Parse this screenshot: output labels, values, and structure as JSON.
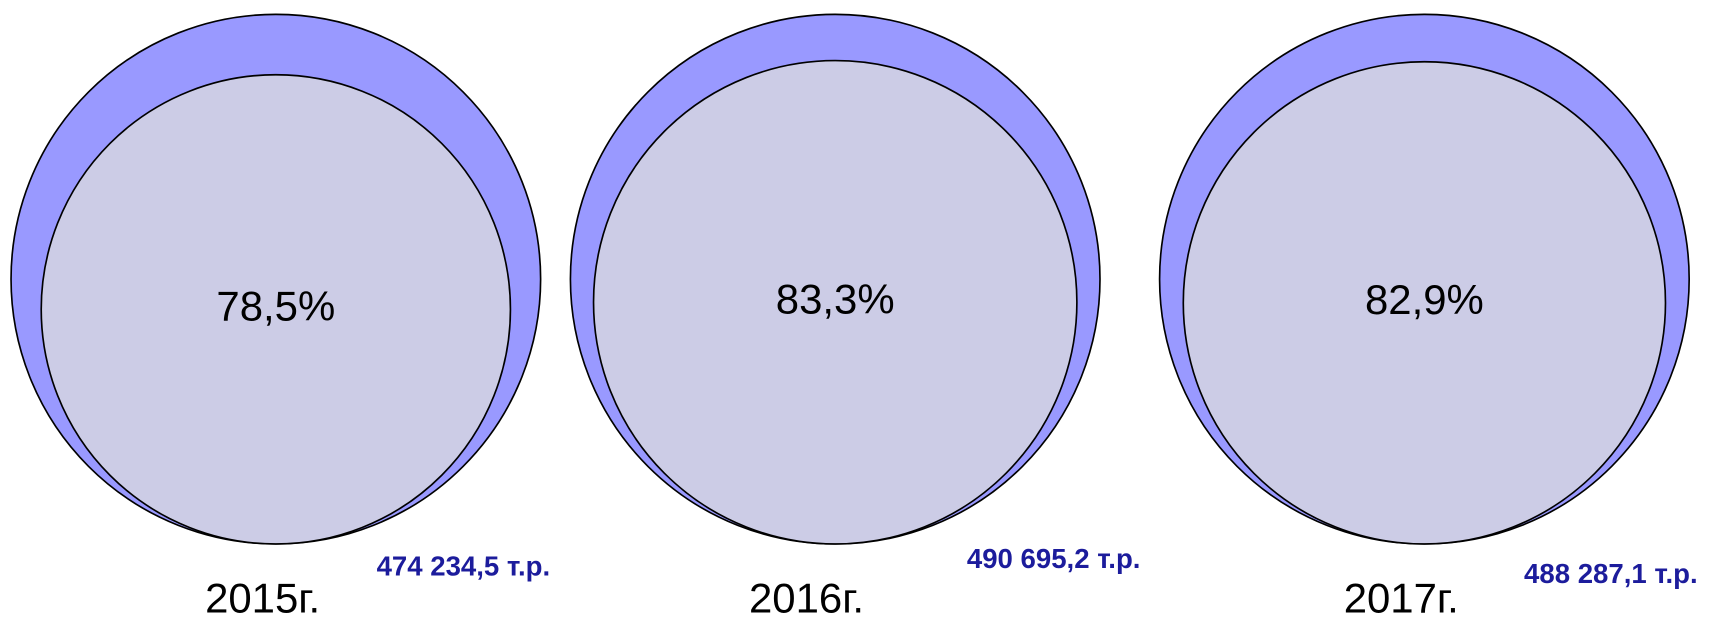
{
  "chart_data": {
    "type": "nested_circles",
    "categories": [
      "2015г.",
      "2016г.",
      "2017г."
    ],
    "values": [
      78.5,
      83.3,
      82.9
    ],
    "value_labels": [
      "78,5%",
      "83,3%",
      "82,9%"
    ],
    "amounts": [
      474234.5,
      490695.2,
      488287.1
    ],
    "amount_labels": [
      "474 234,5 т.р.",
      "490 695,2 т.р.",
      "488 287,1 т.р."
    ],
    "outer_color": "#9999ff",
    "inner_color": "#ccccE6",
    "amount_color": "#1c1c9c"
  }
}
